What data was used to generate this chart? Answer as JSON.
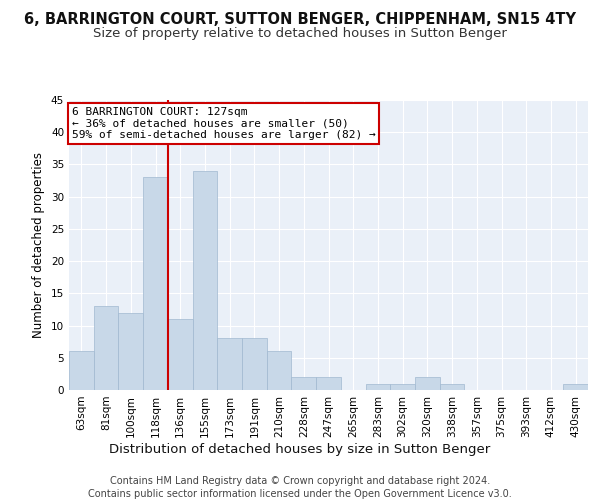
{
  "title": "6, BARRINGTON COURT, SUTTON BENGER, CHIPPENHAM, SN15 4TY",
  "subtitle": "Size of property relative to detached houses in Sutton Benger",
  "xlabel": "Distribution of detached houses by size in Sutton Benger",
  "ylabel": "Number of detached properties",
  "footer1": "Contains HM Land Registry data © Crown copyright and database right 2024.",
  "footer2": "Contains public sector information licensed under the Open Government Licence v3.0.",
  "bar_labels": [
    "63sqm",
    "81sqm",
    "100sqm",
    "118sqm",
    "136sqm",
    "155sqm",
    "173sqm",
    "191sqm",
    "210sqm",
    "228sqm",
    "247sqm",
    "265sqm",
    "283sqm",
    "302sqm",
    "320sqm",
    "338sqm",
    "357sqm",
    "375sqm",
    "393sqm",
    "412sqm",
    "430sqm"
  ],
  "bar_values": [
    6,
    13,
    12,
    33,
    11,
    34,
    8,
    8,
    6,
    2,
    2,
    0,
    1,
    1,
    2,
    1,
    0,
    0,
    0,
    0,
    1
  ],
  "bar_color": "#c8d8e8",
  "bar_edgecolor": "#a0b8d0",
  "bg_color": "#eaf0f8",
  "grid_color": "#ffffff",
  "annotation_line1": "6 BARRINGTON COURT: 127sqm",
  "annotation_line2": "← 36% of detached houses are smaller (50)",
  "annotation_line3": "59% of semi-detached houses are larger (82) →",
  "annotation_box_color": "#ffffff",
  "annotation_box_edgecolor": "#cc0000",
  "vline_color": "#cc0000",
  "ylim": [
    0,
    45
  ],
  "yticks": [
    0,
    5,
    10,
    15,
    20,
    25,
    30,
    35,
    40,
    45
  ],
  "title_fontsize": 10.5,
  "subtitle_fontsize": 9.5,
  "xlabel_fontsize": 9.5,
  "ylabel_fontsize": 8.5,
  "tick_fontsize": 7.5,
  "annotation_fontsize": 8,
  "footer_fontsize": 7
}
